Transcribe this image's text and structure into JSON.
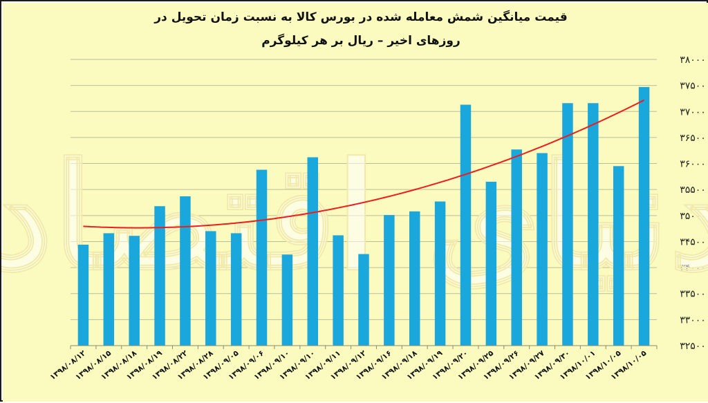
{
  "watermark": "دنیای اقتصاد",
  "chart_data": {
    "type": "bar",
    "title_lines": [
      "قیمت میانگین شمش معامله شده در بورس کالا به نسبت زمان تحویل در",
      "روزهای اخیر – ریال بر هر کیلوگرم"
    ],
    "xlabel": "",
    "ylabel": "",
    "ylim": [
      32500,
      38000
    ],
    "yticks": [
      32500,
      33000,
      33500,
      34000,
      34500,
      35000,
      35500,
      36000,
      36500,
      37000,
      37500,
      38000
    ],
    "ytick_labels": [
      "۳۲۵۰۰",
      "۳۳۰۰۰",
      "۳۳۵۰۰",
      "۳۴۰۰۰",
      "۳۴۵۰۰",
      "۳۵۰۰۰",
      "۳۵۵۰۰",
      "۳۶۰۰۰",
      "۳۶۵۰۰",
      "۳۷۰۰۰",
      "۳۷۵۰۰",
      "۳۸۰۰۰"
    ],
    "categories": [
      "۱۳۹۸/۰۸/۱۲",
      "۱۳۹۸/۰۸/۱۵",
      "۱۳۹۸/۰۸/۱۸",
      "۱۳۹۸/۰۸/۱۹",
      "۱۳۹۸/۰۸/۲۲",
      "۱۳۹۸/۰۸/۲۸",
      "۱۳۹۸/۰۹/۰۵",
      "۱۳۹۸/۰۹/۰۶",
      "۱۳۹۸/۰۹/۱۰",
      "۱۳۹۸/۰۹/۱۰",
      "۱۳۹۸/۰۹/۱۱",
      "۱۳۹۸/۰۹/۱۲",
      "۱۳۹۸/۰۹/۱۶",
      "۱۳۹۸/۰۹/۱۸",
      "۱۳۹۸/۰۹/۱۹",
      "۱۳۹۸/۰۹/۲۰",
      "۱۳۹۸/۰۹/۲۵",
      "۱۳۹۸/۰۹/۲۶",
      "۱۳۹۸/۰۹/۲۷",
      "۱۳۹۸/۰۹/۳۰",
      "۱۳۹۸/۱۰/۰۱",
      "۱۳۹۸/۱۰/۰۵",
      "۱۳۹۸/۱۰/۰۵"
    ],
    "series": [
      {
        "values": [
          34440,
          34660,
          34610,
          35180,
          35370,
          34700,
          34660,
          35880,
          34250,
          36120,
          34620,
          34260,
          35010,
          35080,
          35270,
          37130,
          35650,
          36270,
          36200,
          37160,
          37160,
          35950,
          37470
        ],
        "color": "#1aa7dc"
      }
    ],
    "trendline": {
      "type": "polynomial",
      "color": "#ee1c1c"
    },
    "grid": true,
    "colors": {
      "background": "#fbfbc0",
      "gridline": "#b9bd9a",
      "axis": "#8a8a70"
    }
  }
}
